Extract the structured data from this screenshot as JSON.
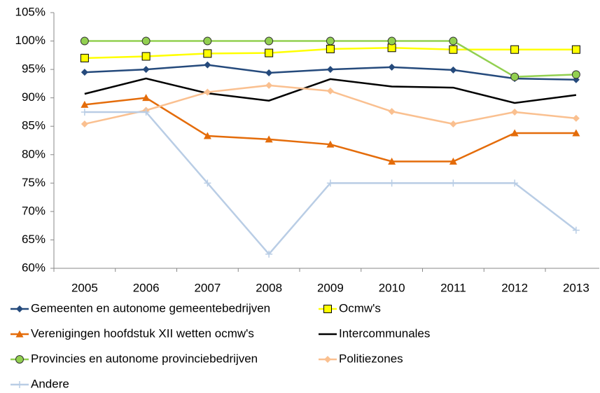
{
  "chart_data": {
    "type": "line",
    "categories": [
      "2005",
      "2006",
      "2007",
      "2008",
      "2009",
      "2010",
      "2011",
      "2012",
      "2013"
    ],
    "ylim": [
      60,
      105
    ],
    "yticks": [
      {
        "value": 60,
        "label": "60%"
      },
      {
        "value": 65,
        "label": "65%"
      },
      {
        "value": 70,
        "label": "70%"
      },
      {
        "value": 75,
        "label": "75%"
      },
      {
        "value": 80,
        "label": "80%"
      },
      {
        "value": 85,
        "label": "85%"
      },
      {
        "value": 90,
        "label": "90%"
      },
      {
        "value": 95,
        "label": "95%"
      },
      {
        "value": 100,
        "label": "100%"
      },
      {
        "value": 105,
        "label": "105%"
      }
    ],
    "grid": false,
    "series": [
      {
        "name": "Gemeenten en autonome gemeentebedrijven",
        "color": "#254a7c",
        "marker": "diamond",
        "marker_color": "#254a7c",
        "values": [
          94.5,
          95,
          95.8,
          94.4,
          95,
          95.4,
          94.9,
          93.4,
          93.2
        ]
      },
      {
        "name": "Ocmw's",
        "color": "#ffff00",
        "marker": "square",
        "marker_color": "#ffff00",
        "values": [
          97,
          97.3,
          97.8,
          97.9,
          98.6,
          98.8,
          98.5,
          98.5,
          98.5
        ]
      },
      {
        "name": "Verenigingen hoofdstuk XII wetten ocmw's",
        "color": "#e46c0a",
        "marker": "triangle",
        "marker_color": "#e46c0a",
        "values": [
          88.8,
          90,
          83.3,
          82.7,
          81.8,
          78.8,
          78.8,
          83.8,
          83.8
        ]
      },
      {
        "name": "Intercommunales",
        "color": "#000000",
        "marker": "none",
        "marker_color": "#000000",
        "values": [
          90.7,
          93.4,
          90.8,
          89.5,
          93.3,
          92,
          91.8,
          89.1,
          90.5
        ]
      },
      {
        "name": "Provincies en autonome provinciebedrijven",
        "color": "#92d050",
        "marker": "circle",
        "marker_color": "#92d050",
        "values": [
          100,
          100,
          100,
          100,
          100,
          100,
          100,
          93.7,
          94.1
        ]
      },
      {
        "name": "Politiezones",
        "color": "#fac090",
        "marker": "diamond",
        "marker_color": "#fac090",
        "values": [
          85.4,
          87.8,
          91,
          92.2,
          91.2,
          87.6,
          85.4,
          87.5,
          86.4
        ]
      },
      {
        "name": "Andere",
        "color": "#b9cde5",
        "marker": "plus",
        "marker_color": "#b9cde5",
        "values": [
          87.5,
          87.5,
          75,
          62.5,
          75,
          75,
          75,
          75,
          66.7
        ]
      }
    ]
  }
}
